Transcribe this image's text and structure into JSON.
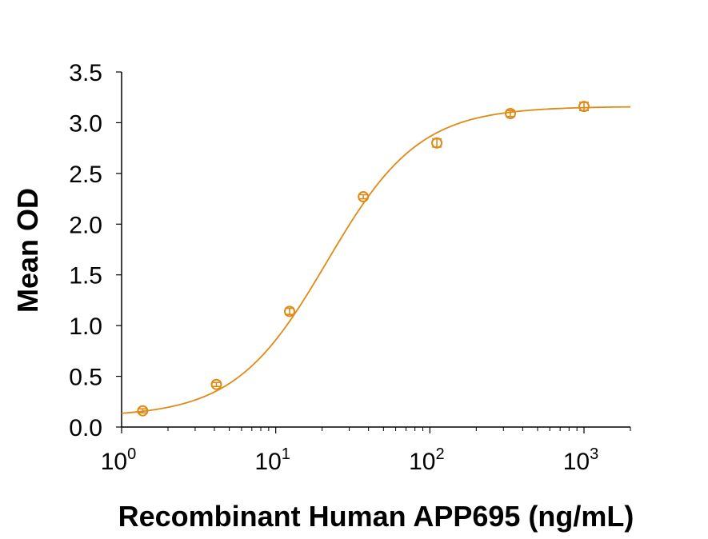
{
  "chart_data": {
    "type": "scatter",
    "xlabel": "Recombinant Human APP695 (ng/mL)",
    "ylabel": "Mean OD",
    "xscale": "log",
    "xlim": [
      1,
      2000
    ],
    "ylim": [
      0,
      3.5
    ],
    "x_ticks": [
      {
        "value": 1,
        "base": "10",
        "exp": "0"
      },
      {
        "value": 10,
        "base": "10",
        "exp": "1"
      },
      {
        "value": 100,
        "base": "10",
        "exp": "2"
      },
      {
        "value": 1000,
        "base": "10",
        "exp": "3"
      }
    ],
    "y_ticks": [
      "0.0",
      "0.5",
      "1.0",
      "1.5",
      "2.0",
      "2.5",
      "3.0",
      "3.5"
    ],
    "grid": false,
    "color": "#E08A16",
    "series": [
      {
        "x": [
          1.37,
          4.12,
          12.3,
          37.0,
          111,
          333,
          1000
        ],
        "y": [
          0.16,
          0.42,
          1.14,
          2.27,
          2.8,
          3.09,
          3.16
        ],
        "error": [
          0.02,
          0.02,
          0.03,
          0.02,
          0.04,
          0.03,
          0.04
        ]
      }
    ]
  }
}
